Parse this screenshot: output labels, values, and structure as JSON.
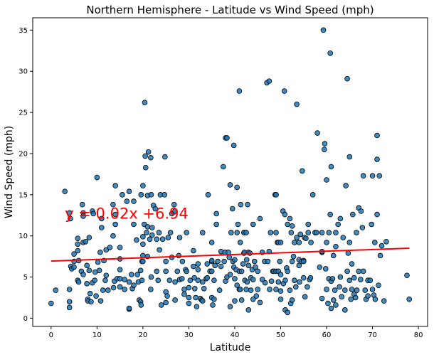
{
  "chart_data": {
    "type": "scatter",
    "title": "Northern Hemisphere - Latitude vs Wind Speed (mph)",
    "xlabel": "Latitude",
    "ylabel": "Wind Speed (mph)",
    "xlim": [
      -4,
      82
    ],
    "ylim": [
      -1,
      36.5
    ],
    "xticks": [
      0,
      10,
      20,
      30,
      40,
      50,
      60,
      70,
      80
    ],
    "yticks": [
      0,
      5,
      10,
      15,
      20,
      25,
      30,
      35
    ],
    "grid": false,
    "point_color": "#1f77b4",
    "point_edge_color": "#000000",
    "regression": {
      "slope": 0.02,
      "intercept": 6.94,
      "x_range": [
        0,
        78
      ],
      "equation": "y = 0.02x +6.94",
      "color": "#ff0000",
      "label_position": [
        3,
        12.7
      ]
    },
    "points": [
      [
        0,
        1.8
      ],
      [
        1,
        3.4
      ],
      [
        3,
        15.4
      ],
      [
        4,
        12.8
      ],
      [
        4.2,
        12.1
      ],
      [
        4,
        1.3
      ],
      [
        4,
        2
      ],
      [
        4,
        3.5
      ],
      [
        4.3,
        6.3
      ],
      [
        4.5,
        6
      ],
      [
        5,
        6.9
      ],
      [
        5,
        6.2
      ],
      [
        5,
        7.8
      ],
      [
        5.8,
        9.7
      ],
      [
        5.8,
        9
      ],
      [
        5.8,
        8.2
      ],
      [
        5.8,
        4.6
      ],
      [
        6,
        4.4
      ],
      [
        6,
        7
      ],
      [
        6.6,
        5.7
      ],
      [
        6.8,
        13.8
      ],
      [
        7,
        5.3
      ],
      [
        7,
        9.2
      ],
      [
        7,
        12.8
      ],
      [
        7,
        12.4
      ],
      [
        7.5,
        9.3
      ],
      [
        7.8,
        6.4
      ],
      [
        7.8,
        4.2
      ],
      [
        8,
        2.3
      ],
      [
        8,
        2.1
      ],
      [
        8.3,
        9.8
      ],
      [
        8.3,
        5.8
      ],
      [
        8.5,
        3
      ],
      [
        8.7,
        2
      ],
      [
        9,
        4.3
      ],
      [
        9,
        13
      ],
      [
        9.2,
        12.7
      ],
      [
        9.5,
        4.6
      ],
      [
        9.6,
        5.6
      ],
      [
        9.8,
        2.7
      ],
      [
        10,
        17.1
      ],
      [
        10.2,
        6.8
      ],
      [
        10.5,
        5.8
      ],
      [
        10.7,
        8
      ],
      [
        10.8,
        2.1
      ],
      [
        11,
        12.1
      ],
      [
        11,
        11
      ],
      [
        11.3,
        3.4
      ],
      [
        11.5,
        7
      ],
      [
        11.8,
        4.6
      ],
      [
        12,
        8.3
      ],
      [
        12,
        5.2
      ],
      [
        12.4,
        3.4
      ],
      [
        12.8,
        8.6
      ],
      [
        13.5,
        13.8
      ],
      [
        13.5,
        10
      ],
      [
        13.6,
        3.7
      ],
      [
        13.8,
        4.5
      ],
      [
        14,
        16.1
      ],
      [
        14,
        12.6
      ],
      [
        14,
        11.4
      ],
      [
        14.4,
        4.8
      ],
      [
        15,
        7.2
      ],
      [
        15,
        5.9
      ],
      [
        15,
        4.8
      ],
      [
        15,
        3.8
      ],
      [
        15,
        8.6
      ],
      [
        15.5,
        15
      ],
      [
        16,
        4.7
      ],
      [
        16,
        3.5
      ],
      [
        16.5,
        14.2
      ],
      [
        17,
        4.4
      ],
      [
        17,
        1.1
      ],
      [
        17,
        1.2
      ],
      [
        17,
        15.4
      ],
      [
        17.5,
        5.3
      ],
      [
        17.7,
        3.6
      ],
      [
        18,
        4
      ],
      [
        18,
        11.4
      ],
      [
        18,
        14.2
      ],
      [
        18.6,
        9.5
      ],
      [
        18.8,
        5.3
      ],
      [
        19,
        4.4
      ],
      [
        19.2,
        2.2
      ],
      [
        19.5,
        2
      ],
      [
        19.5,
        5.8
      ],
      [
        19.6,
        1.6
      ],
      [
        19.6,
        15
      ],
      [
        19.8,
        4.6
      ],
      [
        19.8,
        6.9
      ],
      [
        20,
        16.1
      ],
      [
        20,
        9
      ],
      [
        20,
        7.6
      ],
      [
        20,
        6.9
      ],
      [
        20,
        9.9
      ],
      [
        20.3,
        11.4
      ],
      [
        20.4,
        26.2
      ],
      [
        20.5,
        19.7
      ],
      [
        20.6,
        18.3
      ],
      [
        20.8,
        10.4
      ],
      [
        21,
        14.9
      ],
      [
        21,
        7.5
      ],
      [
        21,
        11.1
      ],
      [
        21.2,
        20.2
      ],
      [
        21.5,
        9.6
      ],
      [
        21.7,
        19.5
      ],
      [
        21.7,
        3.5
      ],
      [
        21.8,
        5
      ],
      [
        21.8,
        15
      ],
      [
        22,
        11
      ],
      [
        22,
        10.1
      ],
      [
        22.3,
        13.7
      ],
      [
        22.7,
        13.3
      ],
      [
        23,
        9.6
      ],
      [
        23,
        5.7
      ],
      [
        23.3,
        4.6
      ],
      [
        23.5,
        10.4
      ],
      [
        23.6,
        8.3
      ],
      [
        23.8,
        15
      ],
      [
        24,
        1.6
      ],
      [
        24.3,
        9.6
      ],
      [
        24.7,
        15
      ],
      [
        24.8,
        19.6
      ],
      [
        25,
        1.9
      ],
      [
        25,
        3.2
      ],
      [
        25,
        5.7
      ],
      [
        25,
        6.9
      ],
      [
        25.3,
        2.7
      ],
      [
        25.5,
        9.8
      ],
      [
        25.8,
        4.6
      ],
      [
        26,
        10.4
      ],
      [
        26.3,
        7.4
      ],
      [
        26.3,
        12.7
      ],
      [
        26.8,
        13.8
      ],
      [
        27,
        4.4
      ],
      [
        27,
        2.2
      ],
      [
        27,
        13
      ],
      [
        27.5,
        5.7
      ],
      [
        27.8,
        7.6
      ],
      [
        28,
        9.8
      ],
      [
        28,
        4.7
      ],
      [
        28.5,
        4.8
      ],
      [
        28.6,
        6.9
      ],
      [
        29,
        3.5
      ],
      [
        29,
        2.9
      ],
      [
        29.3,
        5.9
      ],
      [
        29.5,
        10.4
      ],
      [
        29.5,
        5.7
      ],
      [
        30,
        3.7
      ],
      [
        30,
        2.5
      ],
      [
        30,
        1.8
      ],
      [
        30.3,
        4.6
      ],
      [
        31,
        6.3
      ],
      [
        31,
        8.2
      ],
      [
        31.2,
        4.9
      ],
      [
        31.3,
        3.6
      ],
      [
        31.5,
        2.5
      ],
      [
        31.7,
        1.4
      ],
      [
        32,
        6.6
      ],
      [
        32,
        5.9
      ],
      [
        32,
        4.6
      ],
      [
        32.5,
        2.4
      ],
      [
        32.8,
        2.2
      ],
      [
        33,
        4.4
      ],
      [
        33,
        10.4
      ],
      [
        33,
        2.1
      ],
      [
        33.3,
        3.6
      ],
      [
        33.8,
        4.8
      ],
      [
        34,
        4.9
      ],
      [
        34,
        6.6
      ],
      [
        34.2,
        15
      ],
      [
        34.6,
        5.7
      ],
      [
        35,
        5.7
      ],
      [
        35,
        6.9
      ],
      [
        35,
        7
      ],
      [
        35,
        9.2
      ],
      [
        35,
        2.5
      ],
      [
        35.2,
        1.6
      ],
      [
        35.5,
        2.3
      ],
      [
        35.5,
        4.6
      ],
      [
        35.7,
        6.4
      ],
      [
        36,
        11.4
      ],
      [
        36,
        12.7
      ],
      [
        36.3,
        6.9
      ],
      [
        36.7,
        3.4
      ],
      [
        37,
        6.3
      ],
      [
        37,
        8.1
      ],
      [
        37.5,
        18.4
      ],
      [
        37.7,
        6.9
      ],
      [
        37.9,
        8
      ],
      [
        38,
        21.9
      ],
      [
        38,
        4.5
      ],
      [
        38.3,
        5
      ],
      [
        38.3,
        21.9
      ],
      [
        38.6,
        8
      ],
      [
        38.8,
        7.4
      ],
      [
        39,
        1.4
      ],
      [
        39,
        16.2
      ],
      [
        39,
        5.3
      ],
      [
        39.2,
        10.4
      ],
      [
        39.5,
        13.3
      ],
      [
        39.6,
        6.9
      ],
      [
        39.8,
        6.2
      ],
      [
        39.8,
        21
      ],
      [
        40,
        2.1
      ],
      [
        40,
        4.8
      ],
      [
        40,
        7.1
      ],
      [
        40.3,
        5.9
      ],
      [
        40.5,
        15.9
      ],
      [
        40.5,
        10.4
      ],
      [
        40.5,
        4
      ],
      [
        40.7,
        11.4
      ],
      [
        41,
        27.6
      ],
      [
        41,
        5.7
      ],
      [
        41,
        3.5
      ],
      [
        41.2,
        3.5
      ],
      [
        41.2,
        9.2
      ],
      [
        41.3,
        13.8
      ],
      [
        41.5,
        5.7
      ],
      [
        41.5,
        2.2
      ],
      [
        41.8,
        6.6
      ],
      [
        42,
        7.9
      ],
      [
        42,
        10.4
      ],
      [
        42,
        10.4
      ],
      [
        42.1,
        8
      ],
      [
        42.2,
        4.6
      ],
      [
        42.5,
        10.4
      ],
      [
        42.5,
        3.5
      ],
      [
        42.6,
        7.1
      ],
      [
        42.7,
        4.4
      ],
      [
        42.8,
        13.8
      ],
      [
        43,
        1
      ],
      [
        43,
        6.4
      ],
      [
        43,
        8
      ],
      [
        43.3,
        7.9
      ],
      [
        43.5,
        4.9
      ],
      [
        43.5,
        3.4
      ],
      [
        43.8,
        5.9
      ],
      [
        44,
        2.3
      ],
      [
        44,
        4.7
      ],
      [
        44,
        11.4
      ],
      [
        44.3,
        6.9
      ],
      [
        44.5,
        6.2
      ],
      [
        44.7,
        2.7
      ],
      [
        45,
        5.7
      ],
      [
        45,
        3.5
      ],
      [
        45.5,
        1.9
      ],
      [
        45.5,
        12.1
      ],
      [
        46,
        4.7
      ],
      [
        46,
        8
      ],
      [
        46.5,
        6.9
      ],
      [
        46.6,
        4.3
      ],
      [
        47,
        28.6
      ],
      [
        47.2,
        6.9
      ],
      [
        47.5,
        28.8
      ],
      [
        47.5,
        8.1
      ],
      [
        47.6,
        3.5
      ],
      [
        47.8,
        10.4
      ],
      [
        48,
        4.5
      ],
      [
        48.3,
        5.7
      ],
      [
        48.5,
        5.7
      ],
      [
        48.8,
        15
      ],
      [
        49,
        10.4
      ],
      [
        49,
        5.7
      ],
      [
        49,
        3.5
      ],
      [
        49,
        15
      ],
      [
        49.3,
        9.2
      ],
      [
        49.5,
        5.7
      ],
      [
        49.5,
        9.2
      ],
      [
        49.5,
        4.4
      ],
      [
        49.8,
        6.9
      ],
      [
        50,
        3.3
      ],
      [
        50,
        2.3
      ],
      [
        50,
        5.3
      ],
      [
        50,
        9.2
      ],
      [
        50.5,
        13
      ],
      [
        50.6,
        4.2
      ],
      [
        50.8,
        27.6
      ],
      [
        50.9,
        12.6
      ],
      [
        51,
        4.6
      ],
      [
        51,
        1
      ],
      [
        51.3,
        6.1
      ],
      [
        51.5,
        5.7
      ],
      [
        51.5,
        0.7
      ],
      [
        51.5,
        11.4
      ],
      [
        52,
        3.4
      ],
      [
        52,
        12.1
      ],
      [
        52.2,
        1.8
      ],
      [
        52.3,
        10.4
      ],
      [
        52.5,
        6.9
      ],
      [
        52.5,
        11.2
      ],
      [
        52.5,
        2.2
      ],
      [
        52.8,
        7.5
      ],
      [
        53,
        9.2
      ],
      [
        53,
        4.6
      ],
      [
        53.3,
        3.8
      ],
      [
        53.5,
        26
      ],
      [
        53.5,
        9.8
      ],
      [
        54,
        6.4
      ],
      [
        54,
        9.2
      ],
      [
        54,
        7.1
      ],
      [
        54.1,
        4.4
      ],
      [
        54.3,
        10.2
      ],
      [
        54.6,
        6.9
      ],
      [
        54.7,
        17.9
      ],
      [
        55,
        7
      ],
      [
        55,
        4.9
      ],
      [
        55,
        6.9
      ],
      [
        55.2,
        9.8
      ],
      [
        55.3,
        2.6
      ],
      [
        55.5,
        9.7
      ],
      [
        55.8,
        3.8
      ],
      [
        56,
        10.4
      ],
      [
        56,
        11.4
      ],
      [
        56.3,
        4.7
      ],
      [
        56.5,
        4.9
      ],
      [
        56.6,
        9.2
      ],
      [
        57,
        15
      ],
      [
        57.5,
        10.4
      ],
      [
        57.8,
        10.4
      ],
      [
        58,
        22.5
      ],
      [
        58.5,
        6.2
      ],
      [
        59,
        8
      ],
      [
        59,
        8.1
      ],
      [
        59,
        2.4
      ],
      [
        59,
        10.4
      ],
      [
        59.3,
        35
      ],
      [
        59.5,
        20.5
      ],
      [
        59.6,
        21.2
      ],
      [
        59.8,
        6
      ],
      [
        60,
        9.2
      ],
      [
        60,
        16.8
      ],
      [
        60,
        3.5
      ],
      [
        60.3,
        1.8
      ],
      [
        60.5,
        4.8
      ],
      [
        60.5,
        10.4
      ],
      [
        60.8,
        12.6
      ],
      [
        60.8,
        32.2
      ],
      [
        61,
        18.4
      ],
      [
        61,
        1.2
      ],
      [
        61,
        4.5
      ],
      [
        61.3,
        4.8
      ],
      [
        61.5,
        2.2
      ],
      [
        61.5,
        7.6
      ],
      [
        61.8,
        3.4
      ],
      [
        62,
        10.4
      ],
      [
        62,
        1.6
      ],
      [
        62,
        8.7
      ],
      [
        62.5,
        11.4
      ],
      [
        62.8,
        3.8
      ],
      [
        63,
        12.1
      ],
      [
        63,
        5
      ],
      [
        63.3,
        2.6
      ],
      [
        63.6,
        9.8
      ],
      [
        64,
        3.4
      ],
      [
        64,
        1
      ],
      [
        64.2,
        16.1
      ],
      [
        64.5,
        29.1
      ],
      [
        64.5,
        5.7
      ],
      [
        64.7,
        7.9
      ],
      [
        65,
        19.6
      ],
      [
        65,
        9.2
      ],
      [
        65,
        4.6
      ],
      [
        65.3,
        2.3
      ],
      [
        65.5,
        3.5
      ],
      [
        65.5,
        6.6
      ],
      [
        65.7,
        12.6
      ],
      [
        66,
        2.9
      ],
      [
        66,
        4.9
      ],
      [
        66.3,
        2.5
      ],
      [
        66.5,
        10.4
      ],
      [
        66.6,
        3.4
      ],
      [
        67,
        13.4
      ],
      [
        67,
        5.7
      ],
      [
        67.4,
        4.7
      ],
      [
        67.5,
        13
      ],
      [
        67.8,
        11
      ],
      [
        68,
        17.3
      ],
      [
        68,
        5.7
      ],
      [
        68.4,
        3.4
      ],
      [
        68.6,
        2.3
      ],
      [
        69,
        4.6
      ],
      [
        69,
        2.7
      ],
      [
        69.5,
        4.6
      ],
      [
        69.8,
        11.4
      ],
      [
        70,
        3.5
      ],
      [
        70,
        17.3
      ],
      [
        70.3,
        2.8
      ],
      [
        70.5,
        9.2
      ],
      [
        70.6,
        2.3
      ],
      [
        71,
        12.6
      ],
      [
        71,
        19.3
      ],
      [
        71,
        22.2
      ],
      [
        71.3,
        4
      ],
      [
        71.5,
        17.3
      ],
      [
        71.7,
        7.6
      ],
      [
        72,
        8.8
      ],
      [
        72.5,
        2.1
      ],
      [
        73,
        9.3
      ],
      [
        77.5,
        5.2
      ],
      [
        78,
        2.3
      ]
    ]
  }
}
